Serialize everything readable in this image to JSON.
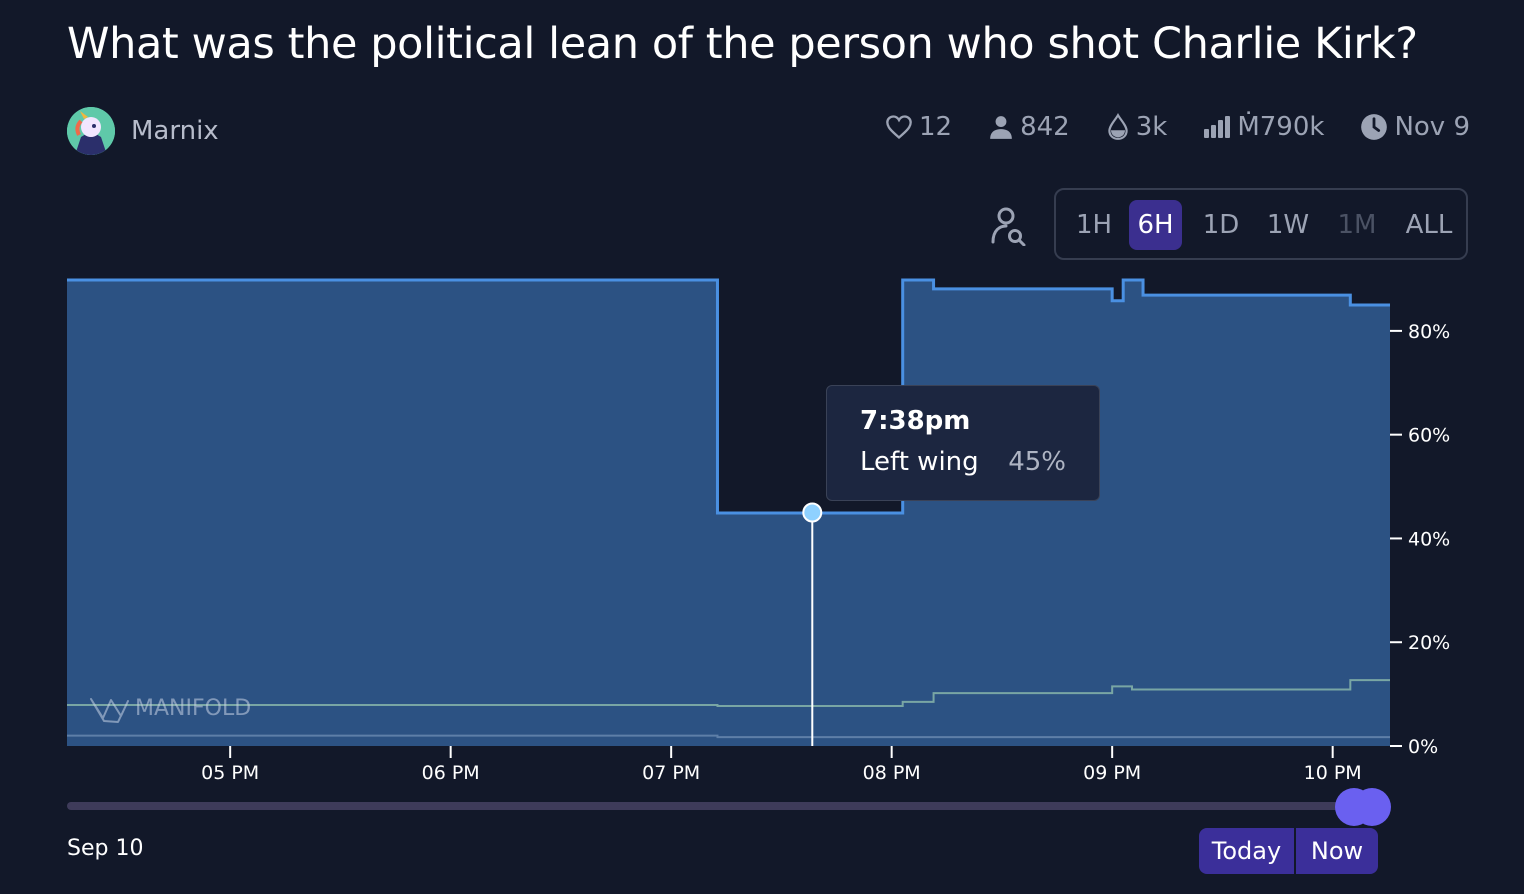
{
  "market": {
    "title": "What was the political lean of the person who shot Charlie Kirk?",
    "creator": "Marnix"
  },
  "stats": {
    "likes": "12",
    "traders": "842",
    "liquidity": "3k",
    "volume": "Ṁ790k",
    "close_date": "Nov 9"
  },
  "time_ranges": [
    {
      "label": "1H",
      "state": "normal"
    },
    {
      "label": "6H",
      "state": "active"
    },
    {
      "label": "1D",
      "state": "normal"
    },
    {
      "label": "1W",
      "state": "normal"
    },
    {
      "label": "1M",
      "state": "disabled"
    },
    {
      "label": "ALL",
      "state": "normal"
    }
  ],
  "watermark": "MANIFOLD",
  "tooltip": {
    "time": "7:38pm",
    "series": "Left wing",
    "value": "45%"
  },
  "footer": {
    "date": "Sep 10",
    "today_label": "Today",
    "now_label": "Now"
  },
  "colors": {
    "background": "#121829",
    "main_line": "#4a90e2",
    "main_fill": "#2c5283",
    "secondary_line": "#79a6a4",
    "accent": "#3b2f9a",
    "slider_thumb": "#6a60f0"
  },
  "chart_data": {
    "type": "line",
    "x_unit": "hours after 4:00 PM, Sep 10",
    "x_ticks": [
      {
        "x": 1,
        "label": "05 PM"
      },
      {
        "x": 2,
        "label": "06 PM"
      },
      {
        "x": 3,
        "label": "07 PM"
      },
      {
        "x": 4,
        "label": "08 PM"
      },
      {
        "x": 5,
        "label": "09 PM"
      },
      {
        "x": 6,
        "label": "10 PM"
      }
    ],
    "xlim": [
      0.26,
      6.26
    ],
    "y_ticks": [
      "0%",
      "20%",
      "40%",
      "60%",
      "80%"
    ],
    "ylim": [
      0,
      90
    ],
    "series": [
      {
        "name": "Left wing",
        "filled": true,
        "points": [
          [
            0.26,
            89.8
          ],
          [
            3.21,
            89.8
          ],
          [
            3.21,
            44.9
          ],
          [
            4.05,
            44.9
          ],
          [
            4.05,
            89.8
          ],
          [
            4.19,
            89.8
          ],
          [
            4.19,
            88.1
          ],
          [
            5.0,
            88.1
          ],
          [
            5.0,
            85.8
          ],
          [
            5.05,
            85.8
          ],
          [
            5.05,
            89.8
          ],
          [
            5.14,
            89.8
          ],
          [
            5.14,
            86.9
          ],
          [
            6.08,
            86.9
          ],
          [
            6.08,
            85.0
          ],
          [
            6.26,
            85.0
          ]
        ]
      },
      {
        "name": "",
        "filled": false,
        "points": [
          [
            0.26,
            7.9
          ],
          [
            3.21,
            7.9
          ],
          [
            3.21,
            7.7
          ],
          [
            4.05,
            7.7
          ],
          [
            4.05,
            8.5
          ],
          [
            4.19,
            8.5
          ],
          [
            4.19,
            10.2
          ],
          [
            5.0,
            10.2
          ],
          [
            5.0,
            11.5
          ],
          [
            5.09,
            11.5
          ],
          [
            5.09,
            10.9
          ],
          [
            6.08,
            10.9
          ],
          [
            6.08,
            12.7
          ],
          [
            6.26,
            12.7
          ]
        ]
      },
      {
        "name": "",
        "filled": false,
        "points": [
          [
            0.26,
            2.0
          ],
          [
            3.21,
            2.0
          ],
          [
            3.21,
            1.7
          ],
          [
            6.26,
            1.7
          ]
        ]
      }
    ],
    "hover": {
      "x": 3.64,
      "y": 45
    }
  }
}
